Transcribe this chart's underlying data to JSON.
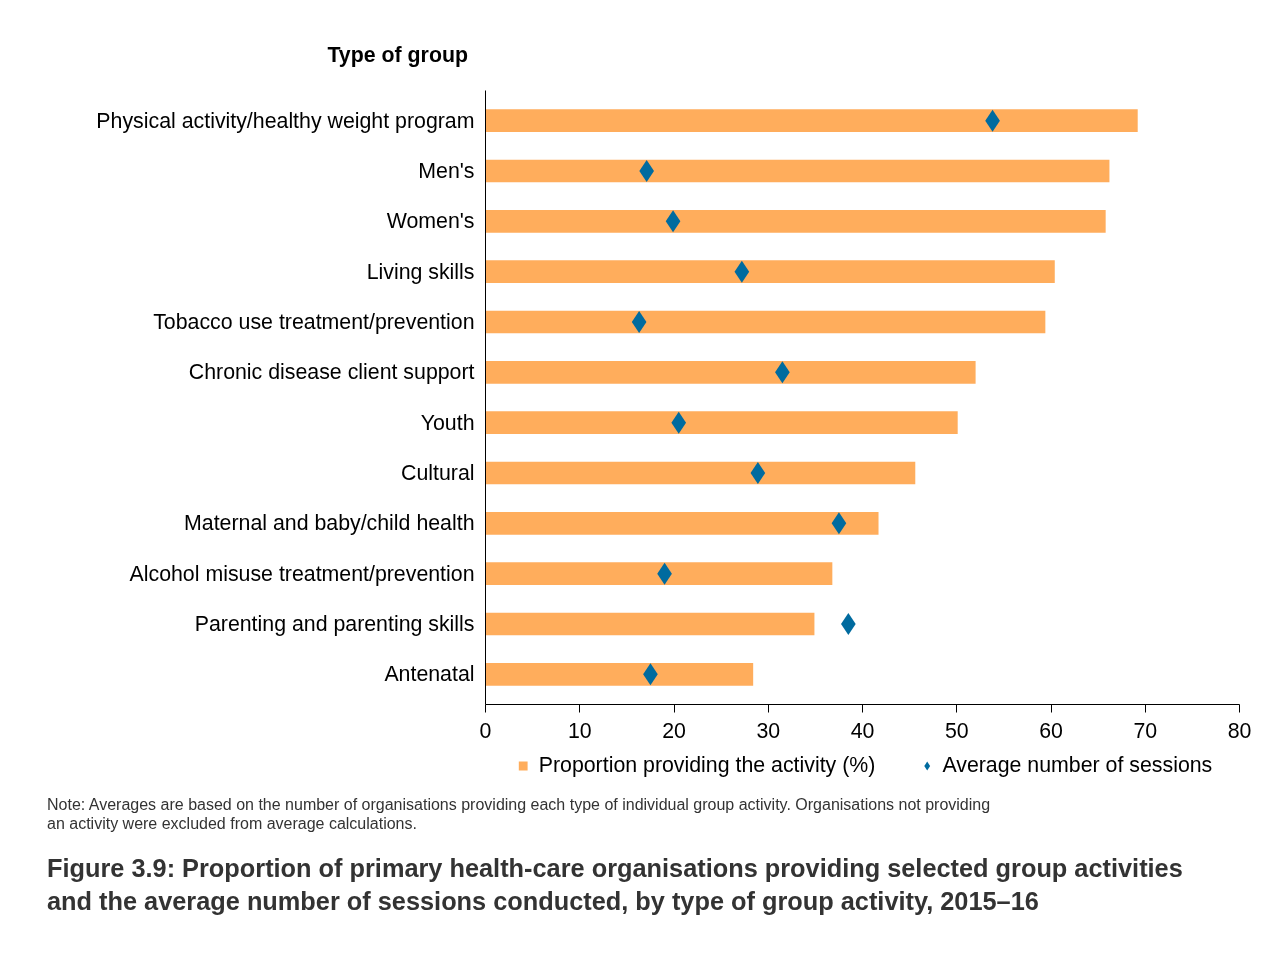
{
  "chart_data": {
    "type": "bar",
    "orientation": "horizontal",
    "title": "Figure 3.9: Proportion of primary health-care organisations providing selected group activities\nand the average number of sessions conducted, by type of group activity, 2015–16",
    "ylabel": "Type of group",
    "categories": [
      "Physical activity/healthy weight program",
      "Men's",
      "Women's",
      "Living skills",
      "Tobacco use treatment/prevention",
      "Chronic disease client support",
      "Youth",
      "Cultural",
      "Maternal and baby/child health",
      "Alcohol misuse treatment/prevention",
      "Parenting and parenting skills",
      "Antenatal"
    ],
    "series": [
      {
        "name": "Proportion providing the activity (%)",
        "color": "#ffad5c",
        "values": [
          69.2,
          66.2,
          65.8,
          60.4,
          59.4,
          52.0,
          50.1,
          45.6,
          41.7,
          36.8,
          34.9,
          28.4
        ]
      },
      {
        "name": "Average number of sessions",
        "type": "scatter",
        "marker": "diamond",
        "color": "#006b9f",
        "values": [
          53.8,
          17.1,
          19.9,
          27.2,
          16.3,
          31.5,
          20.5,
          28.9,
          37.5,
          19.0,
          38.5,
          17.5
        ]
      }
    ],
    "xlim": [
      0,
      80
    ],
    "xticks": [
      0,
      10,
      20,
      30,
      40,
      50,
      60,
      70,
      80
    ],
    "grid": false,
    "legend": "bottom",
    "annotations": [
      "Note: Averages are based on the number of organisations providing each type of individual group activity. Organisations not providing\nan activity were excluded from average calculations."
    ]
  }
}
